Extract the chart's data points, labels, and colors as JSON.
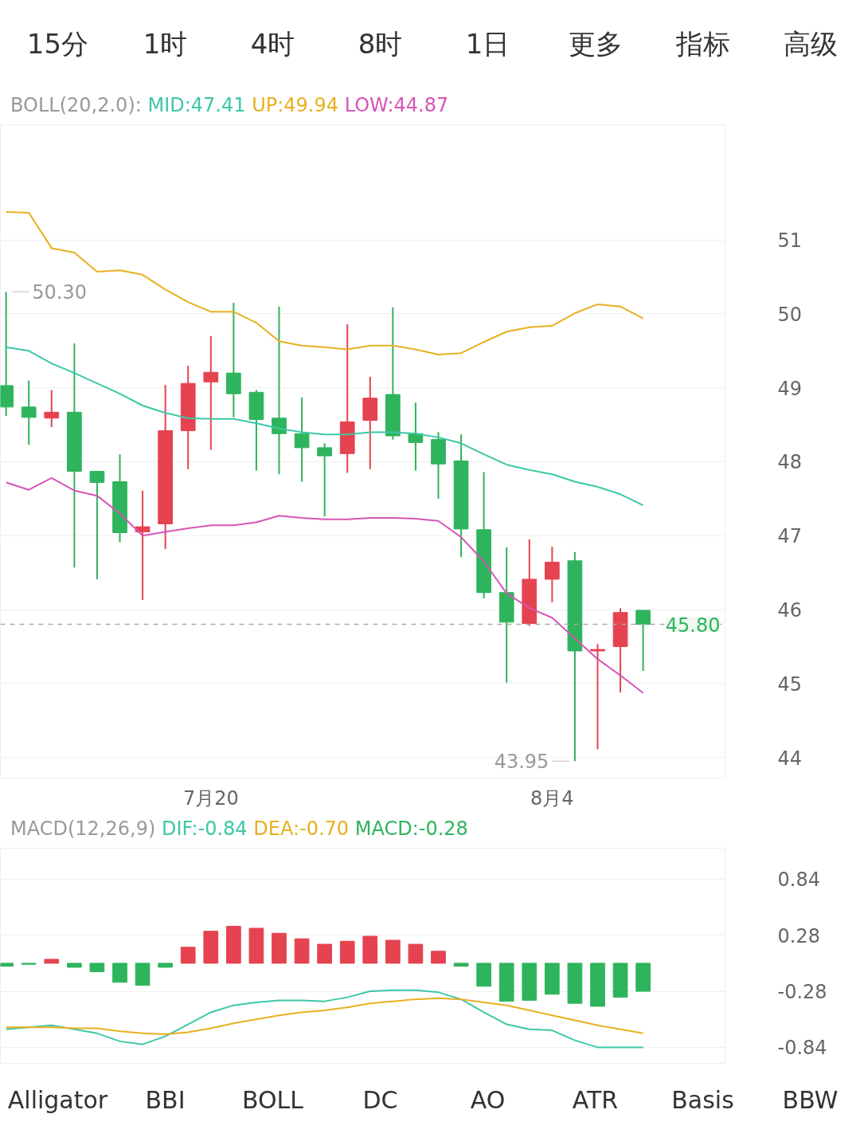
{
  "chart_data": [
    {
      "type": "other",
      "annotations": [
        "15分",
        "1时",
        "4时",
        "8时",
        "1日",
        "更多",
        "指标",
        "高级"
      ]
    },
    {
      "type": "candlestick",
      "legend_title": "BOLL(20,2.0):",
      "legend": "top",
      "categories": [
        null,
        null,
        null,
        null,
        null,
        null,
        null,
        null,
        null,
        "7月20",
        null,
        null,
        null,
        null,
        null,
        null,
        null,
        null,
        null,
        null,
        null,
        null,
        null,
        null,
        "8月4",
        null,
        null,
        null,
        null
      ],
      "ohlc": [
        [
          49.03,
          50.3,
          48.62,
          48.74
        ],
        [
          48.74,
          49.1,
          48.23,
          48.6
        ],
        [
          48.59,
          48.97,
          48.47,
          48.67
        ],
        [
          48.67,
          49.6,
          46.57,
          47.87
        ],
        [
          47.87,
          47.87,
          46.41,
          47.72
        ],
        [
          47.73,
          48.1,
          46.91,
          47.04
        ],
        [
          47.05,
          47.61,
          46.13,
          47.12
        ],
        [
          47.16,
          49.04,
          46.82,
          48.42
        ],
        [
          48.42,
          49.3,
          47.9,
          49.06
        ],
        [
          49.08,
          49.7,
          48.16,
          49.21
        ],
        [
          49.2,
          50.15,
          48.6,
          48.92
        ],
        [
          48.94,
          48.97,
          47.88,
          48.57
        ],
        [
          48.59,
          50.1,
          47.83,
          48.38
        ],
        [
          48.38,
          48.87,
          47.73,
          48.19
        ],
        [
          48.19,
          48.25,
          47.26,
          48.08
        ],
        [
          48.11,
          49.86,
          47.85,
          48.54
        ],
        [
          48.56,
          49.15,
          47.9,
          48.86
        ],
        [
          48.91,
          50.09,
          48.3,
          48.35
        ],
        [
          48.38,
          48.8,
          47.88,
          48.26
        ],
        [
          48.3,
          48.4,
          47.5,
          47.97
        ],
        [
          48.01,
          48.37,
          46.71,
          47.09
        ],
        [
          47.08,
          47.86,
          46.15,
          46.23
        ],
        [
          46.23,
          46.84,
          45.01,
          45.83
        ],
        [
          45.81,
          46.95,
          45.78,
          46.41
        ],
        [
          46.41,
          46.85,
          46.1,
          46.64
        ],
        [
          46.66,
          46.78,
          43.95,
          45.44
        ],
        [
          45.44,
          45.53,
          44.11,
          45.46
        ],
        [
          45.5,
          46.02,
          44.88,
          45.96
        ],
        [
          45.99,
          45.99,
          45.17,
          45.8
        ]
      ],
      "colors": [
        "#2eb45c",
        "#2eb45c",
        "#e5434f",
        "#2eb45c",
        "#2eb45c",
        "#2eb45c",
        "#e5434f",
        "#e5434f",
        "#e5434f",
        "#e5434f",
        "#2eb45c",
        "#2eb45c",
        "#2eb45c",
        "#2eb45c",
        "#2eb45c",
        "#e5434f",
        "#e5434f",
        "#2eb45c",
        "#2eb45c",
        "#2eb45c",
        "#2eb45c",
        "#2eb45c",
        "#2eb45c",
        "#e5434f",
        "#e5434f",
        "#2eb45c",
        "#e5434f",
        "#e5434f",
        "#2eb45c"
      ],
      "series": [
        {
          "name": "MID:47.41",
          "type": "line",
          "color": "#3cc8a6",
          "values": [
            49.55,
            49.5,
            49.33,
            49.2,
            49.06,
            48.92,
            48.76,
            48.66,
            48.59,
            48.58,
            48.58,
            48.52,
            48.45,
            48.4,
            48.37,
            48.37,
            48.4,
            48.4,
            48.38,
            48.33,
            48.25,
            48.1,
            47.96,
            47.89,
            47.83,
            47.73,
            47.66,
            47.56,
            47.41
          ]
        },
        {
          "name": "UP:49.94",
          "type": "line",
          "color": "#e8b020",
          "values": [
            51.38,
            51.37,
            50.89,
            50.83,
            50.57,
            50.59,
            50.53,
            50.33,
            50.16,
            50.03,
            50.03,
            49.88,
            49.63,
            49.57,
            49.55,
            49.52,
            49.57,
            49.57,
            49.52,
            49.45,
            49.47,
            49.62,
            49.76,
            49.82,
            49.84,
            50.01,
            50.13,
            50.1,
            49.94
          ]
        },
        {
          "name": "LOW:44.87",
          "type": "line",
          "color": "#d655b8",
          "values": [
            47.72,
            47.62,
            47.78,
            47.61,
            47.54,
            47.3,
            47.0,
            47.05,
            47.1,
            47.14,
            47.14,
            47.18,
            47.27,
            47.24,
            47.22,
            47.22,
            47.24,
            47.24,
            47.23,
            47.2,
            46.98,
            46.65,
            46.22,
            46.02,
            45.89,
            45.61,
            45.33,
            45.11,
            44.87
          ]
        }
      ],
      "ylim": [
        43.72,
        52.56
      ],
      "yticks": [
        44,
        45,
        46,
        47,
        48,
        49,
        50,
        51
      ],
      "grid": "y",
      "ref_lines": [
        {
          "axis": "y",
          "value": 45.8,
          "label": "45.80",
          "color": "#aaaaaa",
          "line_style": "dashed"
        }
      ],
      "annotations": [
        "50.30",
        "43.95"
      ]
    },
    {
      "type": "bar",
      "legend_title": "MACD(12,26,9)",
      "legend": "top left",
      "tick_labels": "y",
      "categories": [
        null,
        null,
        null,
        null,
        null,
        null,
        null,
        null,
        null,
        null,
        null,
        null,
        null,
        null,
        null,
        null,
        null,
        null,
        null,
        null,
        null,
        null,
        null,
        null,
        null,
        null,
        null,
        null,
        null
      ],
      "series": [
        {
          "name": "DIF:-0.84",
          "type": "line",
          "color": "#3cc8a6",
          "values": [
            -0.66,
            -0.64,
            -0.62,
            -0.66,
            -0.7,
            -0.78,
            -0.81,
            -0.73,
            -0.61,
            -0.49,
            -0.42,
            -0.39,
            -0.37,
            -0.37,
            -0.38,
            -0.34,
            -0.28,
            -0.27,
            -0.27,
            -0.29,
            -0.36,
            -0.49,
            -0.61,
            -0.66,
            -0.67,
            -0.77,
            -0.84,
            -0.84,
            -0.84
          ]
        },
        {
          "name": "DEA:-0.70",
          "type": "line",
          "color": "#e8b020",
          "values": [
            -0.64,
            -0.64,
            -0.64,
            -0.65,
            -0.65,
            -0.68,
            -0.7,
            -0.71,
            -0.69,
            -0.65,
            -0.6,
            -0.56,
            -0.52,
            -0.49,
            -0.47,
            -0.44,
            -0.4,
            -0.38,
            -0.36,
            -0.35,
            -0.36,
            -0.39,
            -0.42,
            -0.47,
            -0.52,
            -0.57,
            -0.62,
            -0.66,
            -0.7
          ]
        },
        {
          "name": "MACD:-0.28",
          "type": "bar",
          "colors": [
            "#2eb45c",
            "#2eb45c",
            "#e5434f",
            "#2eb45c",
            "#2eb45c",
            "#2eb45c",
            "#2eb45c",
            "#2eb45c",
            "#e5434f",
            "#e5434f",
            "#e5434f",
            "#e5434f",
            "#e5434f",
            "#e5434f",
            "#e5434f",
            "#e5434f",
            "#e5434f",
            "#e5434f",
            "#e5434f",
            "#e5434f",
            "#2eb45c",
            "#2eb45c",
            "#2eb45c",
            "#2eb45c",
            "#2eb45c",
            "#2eb45c",
            "#2eb45c",
            "#2eb45c",
            "#2eb45c"
          ],
          "values": [
            -0.03,
            -0.01,
            0.04,
            -0.04,
            -0.085,
            -0.19,
            -0.22,
            -0.04,
            0.16,
            0.32,
            0.37,
            0.35,
            0.3,
            0.245,
            0.19,
            0.22,
            0.27,
            0.23,
            0.19,
            0.12,
            -0.03,
            -0.23,
            -0.38,
            -0.37,
            -0.31,
            -0.4,
            -0.43,
            -0.34,
            -0.28
          ]
        }
      ],
      "ylim": [
        -1.0,
        1.15
      ],
      "yticks": [
        0.84,
        0.28,
        -0.28,
        -0.84
      ],
      "grid": "y"
    },
    {
      "type": "other",
      "annotations": [
        "Alligator",
        "BBI",
        "BOLL",
        "DC",
        "AO",
        "ATR",
        "Basis",
        "BBW"
      ]
    }
  ]
}
